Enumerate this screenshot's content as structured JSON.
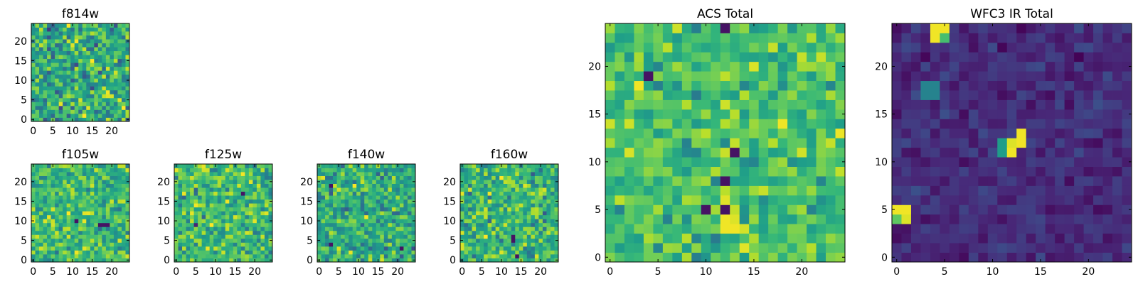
{
  "chart_data": [
    {
      "type": "heatmap",
      "title": "f814w",
      "x_ticks": [
        0,
        5,
        10,
        15,
        20
      ],
      "y_ticks": [
        0,
        5,
        10,
        15,
        20
      ],
      "xlim": [
        -0.5,
        24.5
      ],
      "ylim": [
        -0.5,
        24.5
      ],
      "grid_size": 25,
      "colormap": "viridis",
      "seed": 11,
      "mean": 0.62,
      "spread": 0.2,
      "blobs": []
    },
    {
      "type": "heatmap",
      "title": "f105w",
      "x_ticks": [
        0,
        5,
        10,
        15,
        20
      ],
      "y_ticks": [
        0,
        5,
        10,
        15,
        20
      ],
      "xlim": [
        -0.5,
        24.5
      ],
      "ylim": [
        -0.5,
        24.5
      ],
      "grid_size": 25,
      "colormap": "viridis",
      "seed": 23,
      "mean": 0.68,
      "spread": 0.16,
      "blobs": [
        {
          "x": 17,
          "y": 9,
          "v": 0.05
        },
        {
          "x": 18,
          "y": 9,
          "v": 0.05
        },
        {
          "x": 19,
          "y": 9,
          "v": 0.05
        },
        {
          "x": 11,
          "y": 10,
          "v": 0.05
        }
      ]
    },
    {
      "type": "heatmap",
      "title": "f125w",
      "x_ticks": [
        0,
        5,
        10,
        15,
        20
      ],
      "y_ticks": [
        0,
        5,
        10,
        15,
        20
      ],
      "xlim": [
        -0.5,
        24.5
      ],
      "ylim": [
        -0.5,
        24.5
      ],
      "grid_size": 25,
      "colormap": "viridis",
      "seed": 37,
      "mean": 0.68,
      "spread": 0.17,
      "blobs": [
        {
          "x": 17,
          "y": 17,
          "v": 0.05
        },
        {
          "x": 5,
          "y": 9,
          "v": 0.1
        }
      ]
    },
    {
      "type": "heatmap",
      "title": "f140w",
      "x_ticks": [
        0,
        5,
        10,
        15,
        20
      ],
      "y_ticks": [
        0,
        5,
        10,
        15,
        20
      ],
      "xlim": [
        -0.5,
        24.5
      ],
      "ylim": [
        -0.5,
        24.5
      ],
      "grid_size": 25,
      "colormap": "viridis",
      "seed": 41,
      "mean": 0.62,
      "spread": 0.18,
      "blobs": [
        {
          "x": 3,
          "y": 4,
          "v": 0.05
        },
        {
          "x": 3,
          "y": 19,
          "v": 0.05
        },
        {
          "x": 21,
          "y": 3,
          "v": 0.05
        }
      ]
    },
    {
      "type": "heatmap",
      "title": "f160w",
      "x_ticks": [
        0,
        5,
        10,
        15,
        20
      ],
      "y_ticks": [
        0,
        5,
        10,
        15,
        20
      ],
      "xlim": [
        -0.5,
        24.5
      ],
      "ylim": [
        -0.5,
        24.5
      ],
      "grid_size": 25,
      "colormap": "viridis",
      "seed": 53,
      "mean": 0.66,
      "spread": 0.17,
      "blobs": [
        {
          "x": 13,
          "y": 5,
          "v": 0.05
        },
        {
          "x": 13,
          "y": 6,
          "v": 0.05
        },
        {
          "x": 14,
          "y": 1,
          "v": 0.05
        }
      ]
    },
    {
      "type": "heatmap",
      "title": "ACS Total",
      "x_ticks": [
        0,
        5,
        10,
        15,
        20
      ],
      "y_ticks": [
        0,
        5,
        10,
        15,
        20
      ],
      "xlim": [
        -0.5,
        24.5
      ],
      "ylim": [
        -0.5,
        24.5
      ],
      "grid_size": 25,
      "colormap": "viridis",
      "seed": 67,
      "mean": 0.7,
      "spread": 0.14,
      "blobs": [
        {
          "x": 13,
          "y": 11,
          "v": 0.05
        },
        {
          "x": 12,
          "y": 8,
          "v": 0.05
        },
        {
          "x": 10,
          "y": 5,
          "v": 0.05
        },
        {
          "x": 12,
          "y": 5,
          "v": 0.05
        },
        {
          "x": 12,
          "y": 24,
          "v": 0.05
        },
        {
          "x": 4,
          "y": 19,
          "v": 0.05
        },
        {
          "x": 12,
          "y": 3,
          "v": 0.98
        },
        {
          "x": 13,
          "y": 3,
          "v": 0.98
        },
        {
          "x": 12,
          "y": 4,
          "v": 0.98
        },
        {
          "x": 13,
          "y": 4,
          "v": 0.95
        },
        {
          "x": 3,
          "y": 18,
          "v": 0.98
        },
        {
          "x": 18,
          "y": 14,
          "v": 0.98
        }
      ]
    },
    {
      "type": "heatmap",
      "title": "WFC3 IR Total",
      "x_ticks": [
        0,
        5,
        10,
        15,
        20
      ],
      "y_ticks": [
        0,
        5,
        10,
        15,
        20
      ],
      "xlim": [
        -0.5,
        24.5
      ],
      "ylim": [
        -0.5,
        24.5
      ],
      "grid_size": 25,
      "colormap": "viridis",
      "seed": 79,
      "mean": 0.13,
      "spread": 0.06,
      "blobs": [
        {
          "x": 4,
          "y": 24,
          "v": 0.98
        },
        {
          "x": 5,
          "y": 24,
          "v": 0.98
        },
        {
          "x": 4,
          "y": 23,
          "v": 0.98
        },
        {
          "x": 5,
          "y": 23,
          "v": 0.7
        },
        {
          "x": 0,
          "y": 5,
          "v": 0.98
        },
        {
          "x": 1,
          "y": 5,
          "v": 0.98
        },
        {
          "x": 0,
          "y": 4,
          "v": 0.75
        },
        {
          "x": 1,
          "y": 4,
          "v": 0.95
        },
        {
          "x": 13,
          "y": 13,
          "v": 0.98
        },
        {
          "x": 13,
          "y": 12,
          "v": 0.98
        },
        {
          "x": 12,
          "y": 12,
          "v": 0.95
        },
        {
          "x": 12,
          "y": 11,
          "v": 0.98
        },
        {
          "x": 11,
          "y": 12,
          "v": 0.55
        },
        {
          "x": 11,
          "y": 11,
          "v": 0.55
        },
        {
          "x": 3,
          "y": 17,
          "v": 0.45
        },
        {
          "x": 4,
          "y": 17,
          "v": 0.45
        },
        {
          "x": 3,
          "y": 18,
          "v": 0.45
        },
        {
          "x": 4,
          "y": 18,
          "v": 0.45
        }
      ]
    }
  ]
}
